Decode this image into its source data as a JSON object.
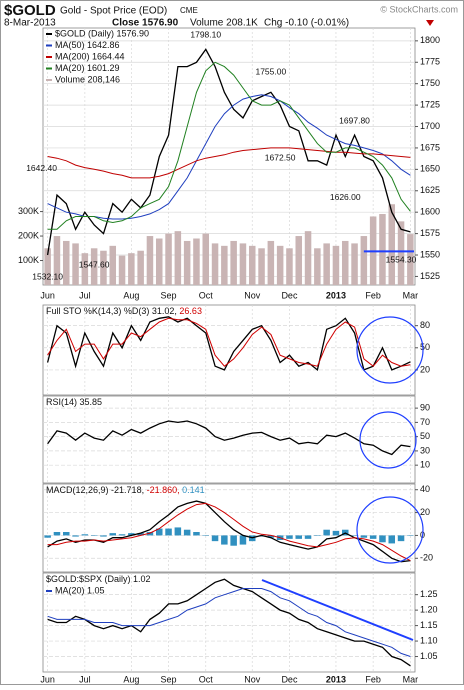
{
  "header": {
    "symbol": "$GOLD",
    "name": "Gold - Spot Price (EOD)",
    "exchange": "CME",
    "date": "8-Mar-2013",
    "close": "Close 1576.90",
    "volume": "Volume 208.1K",
    "change": "Chg -0.10 (-0.01%)",
    "credit": "© StockCharts.com"
  },
  "chart_data": [
    {
      "type": "line",
      "categories": [
        "Jun",
        null,
        null,
        null,
        "Jul",
        null,
        null,
        null,
        null,
        "Aug",
        null,
        null,
        null,
        "Sep",
        null,
        null,
        null,
        "Oct",
        null,
        null,
        null,
        null,
        "Nov",
        null,
        null,
        null,
        "Dec",
        null,
        null,
        null,
        null,
        "2013",
        null,
        null,
        null,
        "Feb",
        null,
        null,
        null,
        "Mar"
      ],
      "ylim": [
        1515,
        1815
      ],
      "yticks": [
        1525,
        1550,
        1575,
        1600,
        1625,
        1650,
        1675,
        1700,
        1725,
        1750,
        1775,
        1800
      ],
      "y2lim": [
        0,
        1050
      ],
      "y2ticks": [
        {
          "value": 100,
          "label": "100K"
        },
        {
          "value": 200,
          "label": "200K"
        },
        {
          "value": 300,
          "label": "300K"
        }
      ],
      "grid": true,
      "series": [
        {
          "name": "$GOLD (Daily) 1576.90",
          "color": "#000000",
          "values": [
            1550,
            1620,
            1610,
            1580,
            1600,
            1585,
            1575,
            1610,
            1600,
            1615,
            1605,
            1620,
            1665,
            1690,
            1770,
            1770,
            1775,
            1790,
            1770,
            1740,
            1720,
            1710,
            1730,
            1735,
            1740,
            1725,
            1700,
            1695,
            1660,
            1660,
            1655,
            1690,
            1665,
            1690,
            1665,
            1660,
            1640,
            1600,
            1580,
            1577
          ]
        },
        {
          "name": "MA(50) 1642.86",
          "color": "#1f3fbf",
          "values": [
            1610,
            1605,
            1600,
            1598,
            1595,
            1595,
            1593,
            1592,
            1592,
            1593,
            1595,
            1598,
            1603,
            1610,
            1625,
            1640,
            1660,
            1680,
            1700,
            1715,
            1725,
            1732,
            1735,
            1737,
            1735,
            1730,
            1722,
            1715,
            1705,
            1698,
            1690,
            1685,
            1680,
            1678,
            1675,
            1672,
            1668,
            1660,
            1650,
            1643
          ]
        },
        {
          "name": "MA(200) 1664.44",
          "color": "#c00000",
          "values": [
            1665,
            1663,
            1660,
            1655,
            1652,
            1650,
            1648,
            1645,
            1643,
            1640,
            1640,
            1640,
            1642,
            1645,
            1650,
            1655,
            1660,
            1663,
            1665,
            1667,
            1670,
            1672,
            1673,
            1674,
            1675,
            1675,
            1675,
            1674,
            1673,
            1672,
            1671,
            1670,
            1670,
            1669,
            1668,
            1668,
            1667,
            1666,
            1665,
            1664
          ]
        },
        {
          "name": "MA(20) 1601.29",
          "color": "#208020",
          "values": [
            1580,
            1580,
            1590,
            1595,
            1595,
            1595,
            1590,
            1588,
            1590,
            1595,
            1605,
            1610,
            1615,
            1630,
            1660,
            1700,
            1740,
            1765,
            1775,
            1770,
            1760,
            1745,
            1730,
            1725,
            1725,
            1730,
            1725,
            1710,
            1695,
            1680,
            1670,
            1670,
            1675,
            1675,
            1670,
            1665,
            1655,
            1640,
            1615,
            1601
          ]
        },
        {
          "name": "Volume 208,146",
          "color": "#c9b4b4",
          "type": "bar",
          "axis": "y2",
          "values": [
            150,
            200,
            180,
            170,
            130,
            150,
            140,
            160,
            120,
            130,
            140,
            200,
            190,
            210,
            220,
            180,
            190,
            210,
            170,
            160,
            180,
            170,
            160,
            150,
            180,
            160,
            150,
            200,
            220,
            150,
            170,
            160,
            180,
            170,
            200,
            280,
            290,
            330,
            260,
            208
          ]
        }
      ],
      "annotations": [
        {
          "value": 1798.1,
          "label": "1798.10"
        },
        {
          "value": 1755,
          "label": "1755.00"
        },
        {
          "value": 1697.8,
          "label": "1697.80"
        },
        {
          "value": 1672.5,
          "label": "1672.50"
        },
        {
          "value": 1642.4,
          "label": "1642.40"
        },
        {
          "value": 1626,
          "label": "1626.00"
        },
        {
          "value": 1554.3,
          "label": "1554.30"
        },
        {
          "value": 1547.6,
          "label": "1547.60"
        },
        {
          "value": 1532.1,
          "label": "1532.10"
        }
      ]
    },
    {
      "type": "line",
      "title": "Full STO %K(14,3) %D(3)",
      "ylim": [
        -14,
        108
      ],
      "yticks": [
        20,
        50,
        80
      ],
      "grid": true,
      "series": [
        {
          "name": "31.02,",
          "color": "#000000",
          "values": [
            30,
            80,
            70,
            25,
            70,
            45,
            25,
            70,
            50,
            80,
            60,
            85,
            90,
            92,
            85,
            90,
            80,
            70,
            25,
            20,
            45,
            60,
            75,
            80,
            60,
            30,
            40,
            25,
            30,
            20,
            75,
            80,
            90,
            70,
            20,
            25,
            50,
            20,
            25,
            31
          ]
        },
        {
          "name": "26.63",
          "color": "#d00000",
          "values": [
            40,
            60,
            75,
            45,
            55,
            55,
            35,
            55,
            55,
            70,
            65,
            75,
            85,
            90,
            88,
            88,
            83,
            75,
            40,
            25,
            35,
            50,
            68,
            78,
            68,
            40,
            35,
            30,
            28,
            25,
            55,
            75,
            85,
            78,
            35,
            25,
            40,
            30,
            25,
            27
          ]
        }
      ]
    },
    {
      "type": "line",
      "title": "RSI(14)",
      "ylim": [
        -15,
        107
      ],
      "yticks": [
        10,
        30,
        50,
        70,
        90
      ],
      "grid": true,
      "series": [
        {
          "name": "35.85",
          "color": "#000000",
          "values": [
            40,
            58,
            55,
            45,
            55,
            48,
            45,
            58,
            52,
            60,
            55,
            62,
            68,
            72,
            70,
            72,
            68,
            62,
            50,
            45,
            48,
            52,
            55,
            56,
            50,
            45,
            48,
            40,
            42,
            40,
            52,
            50,
            55,
            48,
            40,
            38,
            30,
            25,
            38,
            36
          ]
        }
      ]
    },
    {
      "type": "line",
      "title": "MACD(12,26,9)",
      "ylim": [
        -32,
        45
      ],
      "yticks": [
        -20,
        0,
        20,
        40
      ],
      "grid": true,
      "series": [
        {
          "name": "-21.718,",
          "color": "#000000",
          "values": [
            -10,
            -5,
            -3,
            -6,
            -4,
            -4,
            -6,
            -2,
            -2,
            0,
            2,
            5,
            12,
            18,
            25,
            28,
            30,
            28,
            20,
            12,
            5,
            0,
            -2,
            0,
            -2,
            -6,
            -8,
            -10,
            -12,
            -10,
            -3,
            -2,
            2,
            -2,
            -5,
            -8,
            -14,
            -20,
            -23,
            -22
          ]
        },
        {
          "name": "-21.860,",
          "color": "#d00000",
          "values": [
            -8,
            -8,
            -6,
            -5,
            -5,
            -4,
            -5,
            -4,
            -3,
            -2,
            0,
            2,
            6,
            12,
            18,
            23,
            27,
            28,
            25,
            20,
            14,
            8,
            3,
            1,
            0,
            -2,
            -5,
            -7,
            -9,
            -10,
            -8,
            -6,
            -3,
            -2,
            -3,
            -5,
            -8,
            -13,
            -18,
            -22
          ]
        },
        {
          "name": "0.141",
          "color": "#3090c0",
          "type": "bar",
          "values": [
            -2,
            3,
            3,
            -1,
            1,
            0,
            -1,
            2,
            1,
            2,
            2,
            3,
            6,
            6,
            7,
            5,
            3,
            0,
            -5,
            -8,
            -9,
            -8,
            -5,
            -1,
            -2,
            -4,
            -3,
            -3,
            -3,
            0,
            5,
            4,
            5,
            0,
            -2,
            -3,
            -6,
            -7,
            -5,
            0.141
          ]
        }
      ]
    },
    {
      "type": "line",
      "title": "$GOLD:$SPX (Daily)",
      "categories": [
        "Jun",
        null,
        null,
        null,
        "Jul",
        null,
        null,
        null,
        null,
        "Aug",
        null,
        null,
        null,
        "Sep",
        null,
        null,
        null,
        "Oct",
        null,
        null,
        null,
        null,
        "Nov",
        null,
        null,
        null,
        "Dec",
        null,
        null,
        null,
        null,
        "2013",
        null,
        null,
        null,
        "Feb",
        null,
        null,
        null,
        "Mar"
      ],
      "ylim": [
        1.0,
        1.32
      ],
      "yticks": [
        1.05,
        {
          "value": 1.1,
          "label": "1.10"
        },
        1.15,
        {
          "value": 1.2,
          "label": "1.20"
        },
        1.25
      ],
      "grid": true,
      "series": [
        {
          "name": "1.02",
          "color": "#000000",
          "values": [
            1.17,
            1.16,
            1.16,
            1.18,
            1.17,
            1.15,
            1.14,
            1.15,
            1.14,
            1.15,
            1.13,
            1.17,
            1.19,
            1.22,
            1.22,
            1.23,
            1.25,
            1.27,
            1.29,
            1.3,
            1.28,
            1.27,
            1.26,
            1.24,
            1.22,
            1.2,
            1.19,
            1.17,
            1.16,
            1.14,
            1.13,
            1.12,
            1.11,
            1.1,
            1.1,
            1.09,
            1.08,
            1.05,
            1.04,
            1.02
          ]
        },
        {
          "name": "MA(20) 1.05",
          "color": "#1f3fbf",
          "values": [
            1.18,
            1.17,
            1.17,
            1.17,
            1.17,
            1.16,
            1.16,
            1.16,
            1.15,
            1.15,
            1.15,
            1.15,
            1.16,
            1.17,
            1.18,
            1.2,
            1.21,
            1.22,
            1.24,
            1.25,
            1.26,
            1.27,
            1.27,
            1.27,
            1.26,
            1.24,
            1.23,
            1.21,
            1.19,
            1.18,
            1.16,
            1.15,
            1.13,
            1.12,
            1.11,
            1.1,
            1.09,
            1.08,
            1.06,
            1.05
          ]
        }
      ]
    }
  ]
}
